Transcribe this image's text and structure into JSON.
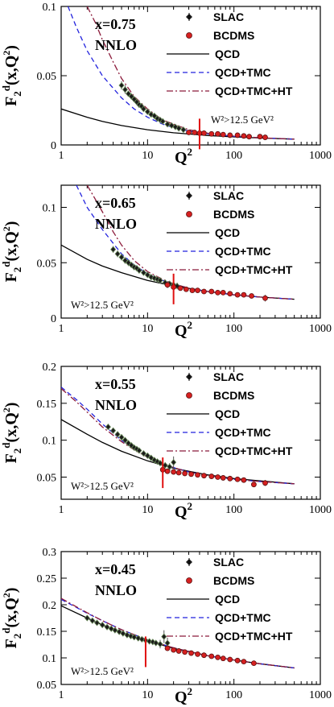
{
  "chart_data": [
    {
      "type": "scatter",
      "panel_label": "x=0.75",
      "order_label": "NNLO",
      "ylabel": "F_2^d(x,Q^2)",
      "xlabel": "Q^2",
      "xscale": "log",
      "xlim": [
        1,
        1000
      ],
      "ylim": [
        0,
        0.1
      ],
      "xticks": [
        "1",
        "10",
        "100",
        "1000"
      ],
      "yticks": [
        "0",
        "0.05",
        "0.1"
      ],
      "cut_label": "W²>12.5 GeV²",
      "cut_q2": 40,
      "legend": [
        "SLAC",
        "BCDMS",
        "QCD",
        "QCD+TMC",
        "QCD+TMC+HT"
      ],
      "series": [
        {
          "name": "SLAC",
          "x": [
            5,
            5.5,
            6,
            6.5,
            7,
            7.5,
            8,
            8.5,
            9,
            10,
            11,
            12,
            13,
            14,
            15,
            17,
            19,
            21,
            23,
            26
          ],
          "y": [
            0.043,
            0.04,
            0.037,
            0.035,
            0.033,
            0.031,
            0.029,
            0.028,
            0.026,
            0.024,
            0.022,
            0.021,
            0.019,
            0.018,
            0.017,
            0.015,
            0.014,
            0.013,
            0.012,
            0.011
          ],
          "err": [
            0.003,
            0.003,
            0.002,
            0.002,
            0.002,
            0.002,
            0.002,
            0.002,
            0.002,
            0.002,
            0.002,
            0.001,
            0.001,
            0.001,
            0.001,
            0.001,
            0.001,
            0.001,
            0.001,
            0.001
          ]
        },
        {
          "name": "BCDMS",
          "x": [
            30,
            35,
            40,
            45,
            55,
            65,
            75,
            90,
            110,
            130,
            150,
            200,
            230
          ],
          "y": [
            0.009,
            0.009,
            0.0085,
            0.0085,
            0.008,
            0.008,
            0.0075,
            0.007,
            0.007,
            0.0065,
            0.006,
            0.006,
            0.0055
          ],
          "err": [
            0.001,
            0.001,
            0.001,
            0.001,
            0.001,
            0.001,
            0.001,
            0.001,
            0.001,
            0.001,
            0.001,
            0.001,
            0.001
          ]
        },
        {
          "name": "QCD",
          "x": [
            1,
            2,
            3,
            5,
            10,
            20,
            50,
            100,
            200,
            500
          ],
          "y": [
            0.026,
            0.02,
            0.017,
            0.014,
            0.011,
            0.0088,
            0.0068,
            0.0058,
            0.005,
            0.0042
          ]
        },
        {
          "name": "QCD+TMC",
          "x": [
            1.2,
            1.5,
            2,
            3,
            5,
            7,
            10,
            15,
            20,
            30,
            50,
            100,
            200,
            500
          ],
          "y": [
            0.1,
            0.085,
            0.068,
            0.05,
            0.034,
            0.026,
            0.02,
            0.015,
            0.0125,
            0.01,
            0.008,
            0.0062,
            0.0052,
            0.0042
          ]
        },
        {
          "name": "QCD+TMC+HT",
          "x": [
            2,
            2.5,
            3,
            4,
            5,
            7,
            10,
            15,
            20,
            30,
            50,
            100,
            200,
            500
          ],
          "y": [
            0.1,
            0.088,
            0.076,
            0.06,
            0.048,
            0.035,
            0.026,
            0.018,
            0.015,
            0.011,
            0.0085,
            0.0064,
            0.0052,
            0.0042
          ]
        }
      ]
    },
    {
      "type": "scatter",
      "panel_label": "x=0.65",
      "order_label": "NNLO",
      "ylabel": "F_2^d(x,Q^2)",
      "xlabel": "Q^2",
      "xscale": "log",
      "xlim": [
        1,
        1000
      ],
      "ylim": [
        0,
        0.12
      ],
      "xticks": [
        "1",
        "10",
        "100",
        "1000"
      ],
      "yticks": [
        "0",
        "0.05",
        "0.1"
      ],
      "cut_label": "W²>12.5 GeV²",
      "cut_q2": 20,
      "legend": [
        "SLAC",
        "BCDMS",
        "QCD",
        "QCD+TMC",
        "QCD+TMC+HT"
      ],
      "series": [
        {
          "name": "SLAC",
          "x": [
            4,
            4.5,
            5,
            5.5,
            6,
            6.5,
            7,
            7.5,
            8,
            9,
            10,
            11,
            12,
            13,
            14,
            16,
            18,
            20,
            22
          ],
          "y": [
            0.062,
            0.058,
            0.055,
            0.052,
            0.05,
            0.048,
            0.046,
            0.045,
            0.043,
            0.041,
            0.039,
            0.037,
            0.036,
            0.035,
            0.034,
            0.032,
            0.031,
            0.03,
            0.029
          ],
          "err": [
            0.003,
            0.003,
            0.003,
            0.003,
            0.003,
            0.002,
            0.002,
            0.002,
            0.002,
            0.002,
            0.002,
            0.002,
            0.002,
            0.002,
            0.002,
            0.002,
            0.002,
            0.003,
            0.003
          ]
        },
        {
          "name": "BCDMS",
          "x": [
            17,
            20,
            24,
            28,
            33,
            38,
            45,
            55,
            65,
            75,
            90,
            110,
            130,
            160,
            230
          ],
          "y": [
            0.03,
            0.028,
            0.027,
            0.026,
            0.025,
            0.025,
            0.024,
            0.024,
            0.023,
            0.023,
            0.022,
            0.021,
            0.021,
            0.02,
            0.018
          ],
          "err": [
            0.003,
            0.002,
            0.002,
            0.002,
            0.002,
            0.002,
            0.002,
            0.002,
            0.002,
            0.002,
            0.002,
            0.002,
            0.002,
            0.002,
            0.003
          ]
        },
        {
          "name": "QCD",
          "x": [
            1,
            2,
            3,
            5,
            10,
            20,
            50,
            100,
            200,
            500
          ],
          "y": [
            0.066,
            0.053,
            0.047,
            0.041,
            0.034,
            0.029,
            0.024,
            0.021,
            0.019,
            0.017
          ]
        },
        {
          "name": "QCD+TMC",
          "x": [
            1.5,
            2,
            3,
            5,
            7,
            10,
            15,
            20,
            30,
            50,
            100,
            200,
            500
          ],
          "y": [
            0.12,
            0.1,
            0.08,
            0.058,
            0.048,
            0.04,
            0.034,
            0.031,
            0.027,
            0.024,
            0.021,
            0.019,
            0.017
          ]
        },
        {
          "name": "QCD+TMC+HT",
          "x": [
            2,
            2.5,
            3,
            4,
            5,
            7,
            10,
            15,
            20,
            30,
            50,
            100,
            200,
            500
          ],
          "y": [
            0.12,
            0.107,
            0.096,
            0.078,
            0.066,
            0.052,
            0.042,
            0.035,
            0.031,
            0.027,
            0.024,
            0.021,
            0.019,
            0.017
          ]
        }
      ]
    },
    {
      "type": "scatter",
      "panel_label": "x=0.55",
      "order_label": "NNLO",
      "ylabel": "F_2^d(x,Q^2)",
      "xlabel": "Q^2",
      "xscale": "log",
      "xlim": [
        1,
        1000
      ],
      "ylim": [
        0.02,
        0.2
      ],
      "xticks": [
        "1",
        "10",
        "100",
        "1000"
      ],
      "yticks": [
        "0.05",
        "0.1",
        "0.15",
        "0.2"
      ],
      "cut_label": "W²>12.5 GeV²",
      "cut_q2": 15,
      "legend": [
        "SLAC",
        "BCDMS",
        "QCD",
        "QCD+TMC",
        "QCD+TMC+HT"
      ],
      "series": [
        {
          "name": "SLAC",
          "x": [
            3.5,
            4,
            4.5,
            5,
            5.5,
            6,
            6.5,
            7,
            7.5,
            8,
            9,
            10,
            11,
            12,
            13,
            14,
            16,
            18,
            20
          ],
          "y": [
            0.118,
            0.113,
            0.108,
            0.104,
            0.1,
            0.096,
            0.093,
            0.09,
            0.088,
            0.086,
            0.082,
            0.079,
            0.076,
            0.073,
            0.071,
            0.069,
            0.066,
            0.064,
            0.07
          ],
          "err": [
            0.004,
            0.004,
            0.004,
            0.004,
            0.003,
            0.003,
            0.003,
            0.003,
            0.003,
            0.003,
            0.003,
            0.003,
            0.003,
            0.003,
            0.003,
            0.003,
            0.004,
            0.005,
            0.008
          ]
        },
        {
          "name": "BCDMS",
          "x": [
            15,
            17,
            20,
            23,
            27,
            32,
            38,
            45,
            55,
            65,
            75,
            90,
            110,
            130,
            170,
            230
          ],
          "y": [
            0.06,
            0.058,
            0.057,
            0.056,
            0.055,
            0.054,
            0.053,
            0.052,
            0.051,
            0.05,
            0.049,
            0.048,
            0.047,
            0.046,
            0.04,
            0.042
          ],
          "err": [
            0.004,
            0.003,
            0.003,
            0.003,
            0.002,
            0.002,
            0.002,
            0.002,
            0.002,
            0.002,
            0.002,
            0.002,
            0.002,
            0.002,
            0.003,
            0.004
          ]
        },
        {
          "name": "QCD",
          "x": [
            1,
            2,
            3,
            5,
            10,
            20,
            50,
            100,
            200,
            500
          ],
          "y": [
            0.128,
            0.108,
            0.097,
            0.085,
            0.072,
            0.062,
            0.053,
            0.048,
            0.045,
            0.041
          ]
        },
        {
          "name": "QCD+TMC",
          "x": [
            1,
            1.5,
            2,
            3,
            5,
            7,
            10,
            15,
            20,
            30,
            50,
            100,
            200,
            500
          ],
          "y": [
            0.172,
            0.155,
            0.142,
            0.122,
            0.1,
            0.088,
            0.078,
            0.068,
            0.063,
            0.057,
            0.052,
            0.047,
            0.044,
            0.041
          ]
        },
        {
          "name": "QCD+TMC+HT",
          "x": [
            1,
            1.5,
            2,
            3,
            5,
            7,
            10,
            15,
            20,
            30,
            50,
            100,
            200,
            500
          ],
          "y": [
            0.17,
            0.152,
            0.138,
            0.118,
            0.098,
            0.087,
            0.077,
            0.068,
            0.063,
            0.057,
            0.052,
            0.047,
            0.044,
            0.041
          ]
        }
      ]
    },
    {
      "type": "scatter",
      "panel_label": "x=0.45",
      "order_label": "NNLO",
      "ylabel": "F_2^d(x,Q^2)",
      "xlabel": "Q^2",
      "xscale": "log",
      "xlim": [
        1,
        1000
      ],
      "ylim": [
        0.05,
        0.3
      ],
      "xticks": [
        "1",
        "10",
        "100",
        "1000"
      ],
      "yticks": [
        "0.05",
        "0.1",
        "0.15",
        "0.2",
        "0.25",
        "0.3"
      ],
      "cut_label": "W²>12.5 GeV²",
      "cut_q2": 9.5,
      "legend": [
        "SLAC",
        "BCDMS",
        "QCD",
        "QCD+TMC",
        "QCD+TMC+HT"
      ],
      "series": [
        {
          "name": "SLAC",
          "x": [
            2,
            2.3,
            2.6,
            3,
            3.4,
            3.8,
            4.2,
            4.7,
            5.2,
            5.8,
            6.4,
            7,
            7.8,
            8.6,
            9.5,
            10.5,
            11.5,
            12.5,
            14,
            15.5,
            17
          ],
          "y": [
            0.175,
            0.17,
            0.166,
            0.162,
            0.158,
            0.155,
            0.152,
            0.149,
            0.146,
            0.143,
            0.141,
            0.139,
            0.137,
            0.135,
            0.133,
            0.131,
            0.13,
            0.128,
            0.126,
            0.14,
            0.128
          ],
          "err": [
            0.005,
            0.005,
            0.004,
            0.004,
            0.004,
            0.004,
            0.004,
            0.004,
            0.004,
            0.004,
            0.004,
            0.003,
            0.003,
            0.003,
            0.003,
            0.003,
            0.004,
            0.005,
            0.008,
            0.012,
            0.01
          ]
        },
        {
          "name": "BCDMS",
          "x": [
            17,
            20,
            23,
            27,
            32,
            38,
            45,
            55,
            65,
            75,
            90,
            110,
            130,
            170
          ],
          "y": [
            0.118,
            0.115,
            0.113,
            0.111,
            0.109,
            0.107,
            0.105,
            0.103,
            0.101,
            0.099,
            0.097,
            0.095,
            0.093,
            0.09
          ],
          "err": [
            0.004,
            0.003,
            0.003,
            0.003,
            0.003,
            0.003,
            0.003,
            0.003,
            0.003,
            0.003,
            0.003,
            0.003,
            0.003,
            0.004
          ]
        },
        {
          "name": "QCD",
          "x": [
            1,
            2,
            3,
            5,
            10,
            20,
            50,
            100,
            200,
            500
          ],
          "y": [
            0.198,
            0.175,
            0.162,
            0.148,
            0.132,
            0.118,
            0.104,
            0.096,
            0.089,
            0.081
          ]
        },
        {
          "name": "QCD+TMC",
          "x": [
            1,
            1.5,
            2,
            3,
            5,
            10,
            20,
            50,
            100,
            200,
            500
          ],
          "y": [
            0.21,
            0.195,
            0.184,
            0.17,
            0.153,
            0.134,
            0.119,
            0.104,
            0.096,
            0.089,
            0.081
          ]
        },
        {
          "name": "QCD+TMC+HT",
          "x": [
            1,
            1.5,
            2,
            3,
            5,
            10,
            20,
            50,
            100,
            200,
            500
          ],
          "y": [
            0.212,
            0.196,
            0.185,
            0.17,
            0.153,
            0.134,
            0.119,
            0.104,
            0.096,
            0.089,
            0.081
          ]
        }
      ]
    }
  ],
  "styles": {
    "SLAC": {
      "color": "#000000",
      "marker": "diamond"
    },
    "BCDMS": {
      "color": "#d62020",
      "marker": "circle"
    },
    "QCD": {
      "color": "#000000",
      "dash": ""
    },
    "QCD+TMC": {
      "color": "#2222dd",
      "dash": "6,4"
    },
    "QCD+TMC+HT": {
      "color": "#8b1a3a",
      "dash": "8,3,2,3"
    },
    "cut_color": "#e01010"
  }
}
